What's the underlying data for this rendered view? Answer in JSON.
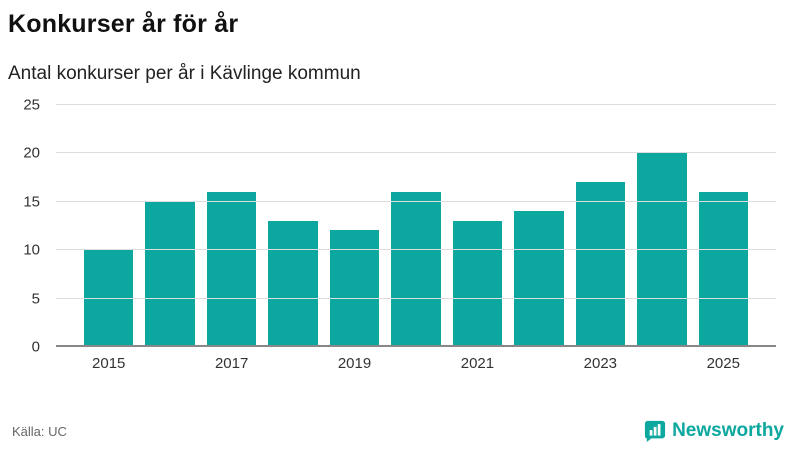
{
  "header": {
    "title": "Konkurser år för år",
    "subtitle": "Antal konkurser per år i Kävlinge kommun"
  },
  "chart_data": {
    "type": "bar",
    "title": "Konkurser år för år",
    "subtitle": "Antal konkurser per år i Kävlinge kommun",
    "categories": [
      2015,
      2016,
      2017,
      2018,
      2019,
      2020,
      2021,
      2022,
      2023,
      2024,
      2025
    ],
    "values": [
      10,
      15,
      16,
      13,
      12,
      16,
      13,
      14,
      17,
      20,
      16
    ],
    "xlabel": "",
    "ylabel": "",
    "ylim": [
      0,
      25
    ],
    "yticks": [
      0,
      5,
      10,
      15,
      20,
      25
    ],
    "xtick_labels": [
      "2015",
      "2017",
      "2019",
      "2021",
      "2023",
      "2025"
    ],
    "grid": "horizontal",
    "legend": "none"
  },
  "footer": {
    "source": "Källa: UC",
    "brand": "Newsworthy"
  },
  "colors": {
    "bar": "#0ca79e",
    "brand": "#0ca79e",
    "grid": "#dddddd",
    "axis": "#888888"
  }
}
